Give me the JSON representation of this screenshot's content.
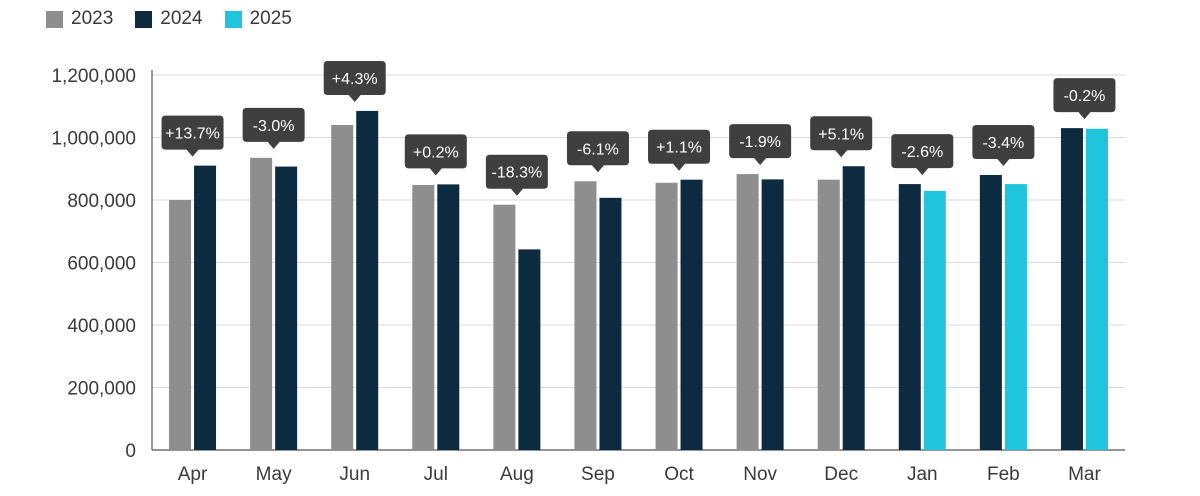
{
  "chart_data": {
    "type": "bar",
    "categories": [
      "Apr",
      "May",
      "Jun",
      "Jul",
      "Aug",
      "Sep",
      "Oct",
      "Nov",
      "Dec",
      "Jan",
      "Feb",
      "Mar"
    ],
    "series": [
      {
        "name": "2023",
        "color": "#8e8e8e",
        "values": [
          800000,
          935000,
          1040000,
          848000,
          785000,
          860000,
          855000,
          883000,
          865000,
          null,
          null,
          null
        ]
      },
      {
        "name": "2024",
        "color": "#0d2b40",
        "values": [
          910000,
          907000,
          1085000,
          850000,
          642000,
          807000,
          865000,
          866000,
          908000,
          851000,
          880000,
          1030000
        ]
      },
      {
        "name": "2025",
        "color": "#1ec5dd",
        "values": [
          null,
          null,
          null,
          null,
          null,
          null,
          null,
          null,
          null,
          829000,
          851000,
          1028000
        ]
      }
    ],
    "annotations": [
      "+13.7%",
      "-3.0%",
      "+4.3%",
      "+0.2%",
      "-18.3%",
      "-6.1%",
      "+1.1%",
      "-1.9%",
      "+5.1%",
      "-2.6%",
      "-3.4%",
      "-0.2%"
    ],
    "yticks": [
      "0",
      "200,000",
      "400,000",
      "600,000",
      "800,000",
      "1,000,000",
      "1,200,000"
    ],
    "ylim": [
      0,
      1200000
    ],
    "grid": true,
    "legend_position": "top-left"
  }
}
